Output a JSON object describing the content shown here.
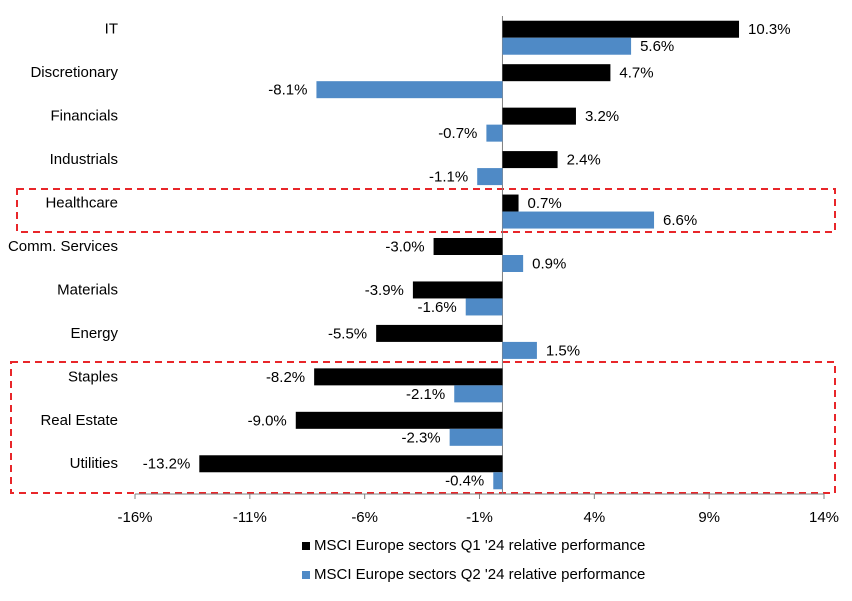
{
  "chart_data": {
    "type": "bar",
    "orientation": "horizontal",
    "categories": [
      "IT",
      "Discretionary",
      "Financials",
      "Industrials",
      "Healthcare",
      "Comm. Services",
      "Materials",
      "Energy",
      "Staples",
      "Real Estate",
      "Utilities"
    ],
    "series": [
      {
        "name": "MSCI Europe sectors Q1 '24 relative performance",
        "color": "#000000",
        "values": [
          10.3,
          4.7,
          3.2,
          2.4,
          0.7,
          -3.0,
          -3.9,
          -5.5,
          -8.2,
          -9.0,
          -13.2
        ],
        "value_labels": [
          "10.3%",
          "4.7%",
          "3.2%",
          "2.4%",
          "0.7%",
          "-3.0%",
          "-3.9%",
          "-5.5%",
          "-8.2%",
          "-9.0%",
          "-13.2%"
        ]
      },
      {
        "name": "MSCI Europe sectors Q2 '24 relative performance",
        "color": "#4f8ac6",
        "values": [
          5.6,
          -8.1,
          -0.7,
          -1.1,
          6.6,
          0.9,
          -1.6,
          1.5,
          -2.1,
          -2.3,
          -0.4
        ],
        "value_labels": [
          "5.6%",
          "-8.1%",
          "-0.7%",
          "-1.1%",
          "6.6%",
          "0.9%",
          "-1.6%",
          "1.5%",
          "-2.1%",
          "-2.3%",
          "-0.4%"
        ]
      }
    ],
    "xlim": [
      -16,
      14
    ],
    "xticks": [
      {
        "value": -16,
        "label": "-16%"
      },
      {
        "value": -11,
        "label": "-11%"
      },
      {
        "value": -6,
        "label": "-6%"
      },
      {
        "value": -1,
        "label": "-1%"
      },
      {
        "value": 4,
        "label": "4%"
      },
      {
        "value": 9,
        "label": "9%"
      },
      {
        "value": 14,
        "label": "14%"
      }
    ],
    "grid": false,
    "legend": "bottom"
  }
}
